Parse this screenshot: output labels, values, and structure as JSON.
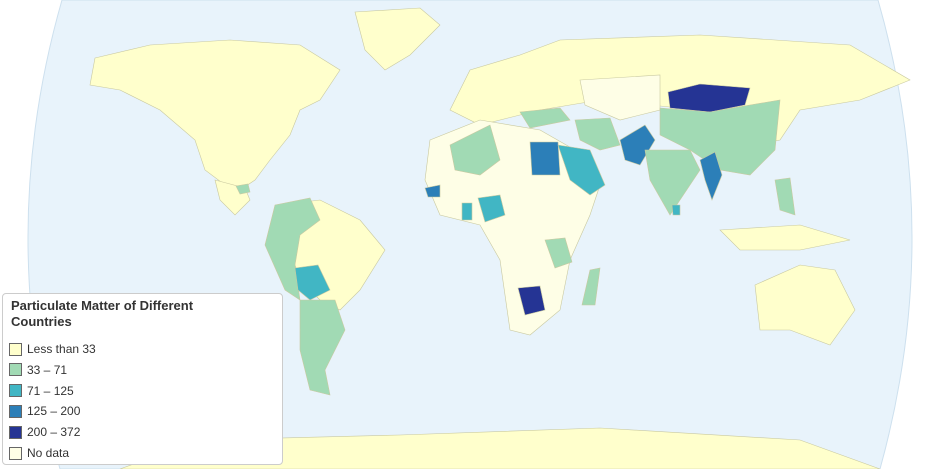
{
  "legend": {
    "title": "Particulate Matter of Different Countries",
    "items": [
      {
        "label": "Less than 33",
        "color": "#ffffcc"
      },
      {
        "label": "33 – 71",
        "color": "#a1dab4"
      },
      {
        "label": "71 – 125",
        "color": "#41b6c4"
      },
      {
        "label": "125 – 200",
        "color": "#2c7fb8"
      },
      {
        "label": "200 – 372",
        "color": "#253494"
      },
      {
        "label": "No data",
        "color": "#fefee6"
      }
    ]
  }
}
